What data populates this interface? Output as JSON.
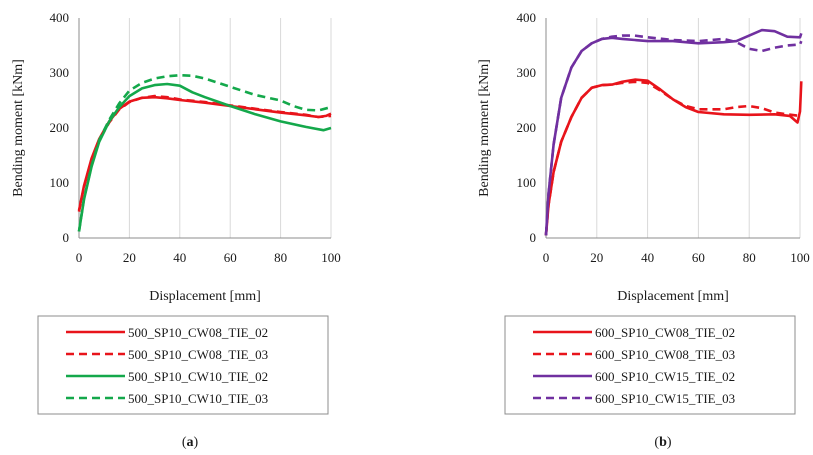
{
  "chart_data": [
    {
      "type": "line",
      "caption_prefix": "(",
      "caption_letter": "a",
      "caption_suffix": ")",
      "xlabel": "Displacement [mm]",
      "ylabel": "Bending moment [kNm]",
      "xlim": [
        0,
        100
      ],
      "ylim": [
        0,
        400
      ],
      "xticks": [
        "0",
        "20",
        "40",
        "60",
        "80",
        "100"
      ],
      "yticks": [
        "0",
        "100",
        "200",
        "300",
        "400"
      ],
      "grid": "vertical",
      "legend_position": "bottom",
      "series": [
        {
          "name": "500_SP10_CW08_TIE_02",
          "color": "#e8141b",
          "dash": "solid",
          "points": [
            [
              0,
              50
            ],
            [
              2,
              95
            ],
            [
              5,
              145
            ],
            [
              8,
              180
            ],
            [
              12,
              212
            ],
            [
              16,
              235
            ],
            [
              20,
              248
            ],
            [
              25,
              255
            ],
            [
              30,
              256
            ],
            [
              35,
              254
            ],
            [
              40,
              251
            ],
            [
              50,
              246
            ],
            [
              60,
              240
            ],
            [
              70,
              234
            ],
            [
              80,
              228
            ],
            [
              90,
              223
            ],
            [
              95,
              220
            ],
            [
              98,
              222
            ],
            [
              100,
              226
            ]
          ]
        },
        {
          "name": "500_SP10_CW08_TIE_03",
          "color": "#e8141b",
          "dash": "dashed",
          "points": [
            [
              0,
              48
            ],
            [
              2,
              93
            ],
            [
              5,
              143
            ],
            [
              8,
              178
            ],
            [
              12,
              210
            ],
            [
              16,
              234
            ],
            [
              20,
              247
            ],
            [
              25,
              255
            ],
            [
              30,
              258
            ],
            [
              35,
              256
            ],
            [
              40,
              252
            ],
            [
              50,
              247
            ],
            [
              60,
              241
            ],
            [
              70,
              235
            ],
            [
              80,
              229
            ],
            [
              90,
              224
            ],
            [
              95,
              220
            ],
            [
              100,
              222
            ]
          ]
        },
        {
          "name": "500_SP10_CW10_TIE_02",
          "color": "#14a84b",
          "dash": "solid",
          "points": [
            [
              0,
              12
            ],
            [
              2,
              70
            ],
            [
              5,
              130
            ],
            [
              8,
              175
            ],
            [
              12,
              212
            ],
            [
              16,
              238
            ],
            [
              20,
              258
            ],
            [
              25,
              272
            ],
            [
              30,
              278
            ],
            [
              35,
              280
            ],
            [
              40,
              277
            ],
            [
              45,
              265
            ],
            [
              50,
              256
            ],
            [
              60,
              240
            ],
            [
              70,
              225
            ],
            [
              80,
              212
            ],
            [
              90,
              202
            ],
            [
              97,
              196
            ],
            [
              100,
              200
            ]
          ]
        },
        {
          "name": "500_SP10_CW10_TIE_03",
          "color": "#14a84b",
          "dash": "dashed",
          "points": [
            [
              0,
              12
            ],
            [
              2,
              72
            ],
            [
              5,
              132
            ],
            [
              8,
              178
            ],
            [
              12,
              215
            ],
            [
              16,
              245
            ],
            [
              20,
              268
            ],
            [
              25,
              282
            ],
            [
              30,
              290
            ],
            [
              35,
              294
            ],
            [
              40,
              296
            ],
            [
              45,
              295
            ],
            [
              50,
              290
            ],
            [
              60,
              275
            ],
            [
              70,
              260
            ],
            [
              80,
              250
            ],
            [
              85,
              240
            ],
            [
              90,
              233
            ],
            [
              95,
              232
            ],
            [
              100,
              238
            ]
          ]
        }
      ]
    },
    {
      "type": "line",
      "caption_prefix": "(",
      "caption_letter": "b",
      "caption_suffix": ")",
      "xlabel": "Displacement [mm]",
      "ylabel": "Bending moment [kNm]",
      "xlim": [
        0,
        100
      ],
      "ylim": [
        0,
        400
      ],
      "xticks": [
        "0",
        "20",
        "40",
        "60",
        "80",
        "100"
      ],
      "yticks": [
        "0",
        "100",
        "200",
        "300",
        "400"
      ],
      "grid": "vertical",
      "legend_position": "bottom",
      "series": [
        {
          "name": "600_SP10_CW08_TIE_02",
          "color": "#e8141b",
          "dash": "solid",
          "points": [
            [
              0,
              5
            ],
            [
              1,
              60
            ],
            [
              3,
              120
            ],
            [
              6,
              175
            ],
            [
              10,
              220
            ],
            [
              14,
              255
            ],
            [
              18,
              273
            ],
            [
              22,
              278
            ],
            [
              26,
              279
            ],
            [
              30,
              284
            ],
            [
              35,
              288
            ],
            [
              40,
              286
            ],
            [
              45,
              270
            ],
            [
              50,
              252
            ],
            [
              55,
              238
            ],
            [
              60,
              229
            ],
            [
              70,
              225
            ],
            [
              80,
              224
            ],
            [
              90,
              225
            ],
            [
              96,
              222
            ],
            [
              99,
              210
            ],
            [
              100,
              230
            ],
            [
              100.5,
              285
            ]
          ]
        },
        {
          "name": "600_SP10_CW08_TIE_03",
          "color": "#e8141b",
          "dash": "dashed",
          "points": [
            [
              0,
              5
            ],
            [
              1,
              60
            ],
            [
              3,
              120
            ],
            [
              6,
              175
            ],
            [
              10,
              220
            ],
            [
              14,
              255
            ],
            [
              18,
              273
            ],
            [
              22,
              278
            ],
            [
              26,
              279
            ],
            [
              30,
              282
            ],
            [
              35,
              284
            ],
            [
              40,
              282
            ],
            [
              45,
              268
            ],
            [
              50,
              252
            ],
            [
              55,
              240
            ],
            [
              60,
              234
            ],
            [
              70,
              234
            ],
            [
              75,
              238
            ],
            [
              80,
              240
            ],
            [
              85,
              236
            ],
            [
              90,
              228
            ],
            [
              95,
              225
            ],
            [
              100,
              222
            ]
          ]
        },
        {
          "name": "600_SP10_CW15_TIE_02",
          "color": "#7030a0",
          "dash": "solid",
          "points": [
            [
              0,
              5
            ],
            [
              1,
              80
            ],
            [
              3,
              170
            ],
            [
              6,
              255
            ],
            [
              10,
              310
            ],
            [
              14,
              340
            ],
            [
              18,
              354
            ],
            [
              22,
              362
            ],
            [
              26,
              364
            ],
            [
              30,
              362
            ],
            [
              35,
              360
            ],
            [
              40,
              358
            ],
            [
              50,
              358
            ],
            [
              60,
              354
            ],
            [
              70,
              356
            ],
            [
              75,
              358
            ],
            [
              80,
              368
            ],
            [
              85,
              378
            ],
            [
              90,
              376
            ],
            [
              95,
              366
            ],
            [
              100,
              365
            ],
            [
              100.5,
              372
            ]
          ]
        },
        {
          "name": "600_SP10_CW15_TIE_03",
          "color": "#7030a0",
          "dash": "dashed",
          "points": [
            [
              0,
              5
            ],
            [
              1,
              80
            ],
            [
              3,
              170
            ],
            [
              6,
              255
            ],
            [
              10,
              310
            ],
            [
              14,
              340
            ],
            [
              18,
              354
            ],
            [
              22,
              362
            ],
            [
              26,
              366
            ],
            [
              30,
              368
            ],
            [
              35,
              368
            ],
            [
              40,
              365
            ],
            [
              50,
              360
            ],
            [
              60,
              358
            ],
            [
              65,
              360
            ],
            [
              70,
              362
            ],
            [
              75,
              356
            ],
            [
              80,
              344
            ],
            [
              85,
              340
            ],
            [
              90,
              346
            ],
            [
              95,
              350
            ],
            [
              100,
              352
            ],
            [
              100.5,
              358
            ]
          ]
        }
      ]
    }
  ]
}
